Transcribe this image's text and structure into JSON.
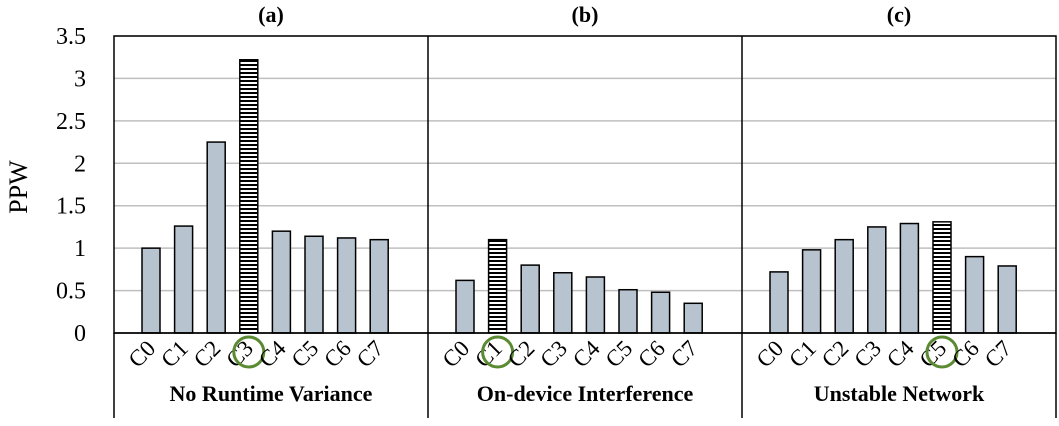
{
  "chart_data": {
    "type": "bar",
    "ylabel": "PPW",
    "ylim": [
      0,
      3.5
    ],
    "yticks": [
      "0",
      "0.5",
      "1",
      "1.5",
      "2",
      "2.5",
      "3",
      "3.5"
    ],
    "grid": true,
    "colors": {
      "bar": "#b7c3cf",
      "highlight_circle": "#5a8a32",
      "grid": "#bfbfbf"
    },
    "panels": [
      {
        "title": "(a)",
        "group_label": "No Runtime Variance",
        "categories": [
          "C0",
          "C1",
          "C2",
          "C3",
          "C4",
          "C5",
          "C6",
          "C7"
        ],
        "values": [
          1.0,
          1.26,
          2.25,
          3.22,
          1.2,
          1.14,
          1.12,
          1.1
        ],
        "highlight": "C3"
      },
      {
        "title": "(b)",
        "group_label": "On-device Interference",
        "categories": [
          "C0",
          "C1",
          "C2",
          "C3",
          "C4",
          "C5",
          "C6",
          "C7"
        ],
        "values": [
          0.62,
          1.1,
          0.8,
          0.71,
          0.66,
          0.51,
          0.48,
          0.35
        ],
        "highlight": "C1"
      },
      {
        "title": "(c)",
        "group_label": "Unstable Network",
        "categories": [
          "C0",
          "C1",
          "C2",
          "C3",
          "C4",
          "C5",
          "C6",
          "C7"
        ],
        "values": [
          0.72,
          0.98,
          1.1,
          1.25,
          1.29,
          1.31,
          0.9,
          0.79
        ],
        "highlight": "C5"
      }
    ]
  }
}
